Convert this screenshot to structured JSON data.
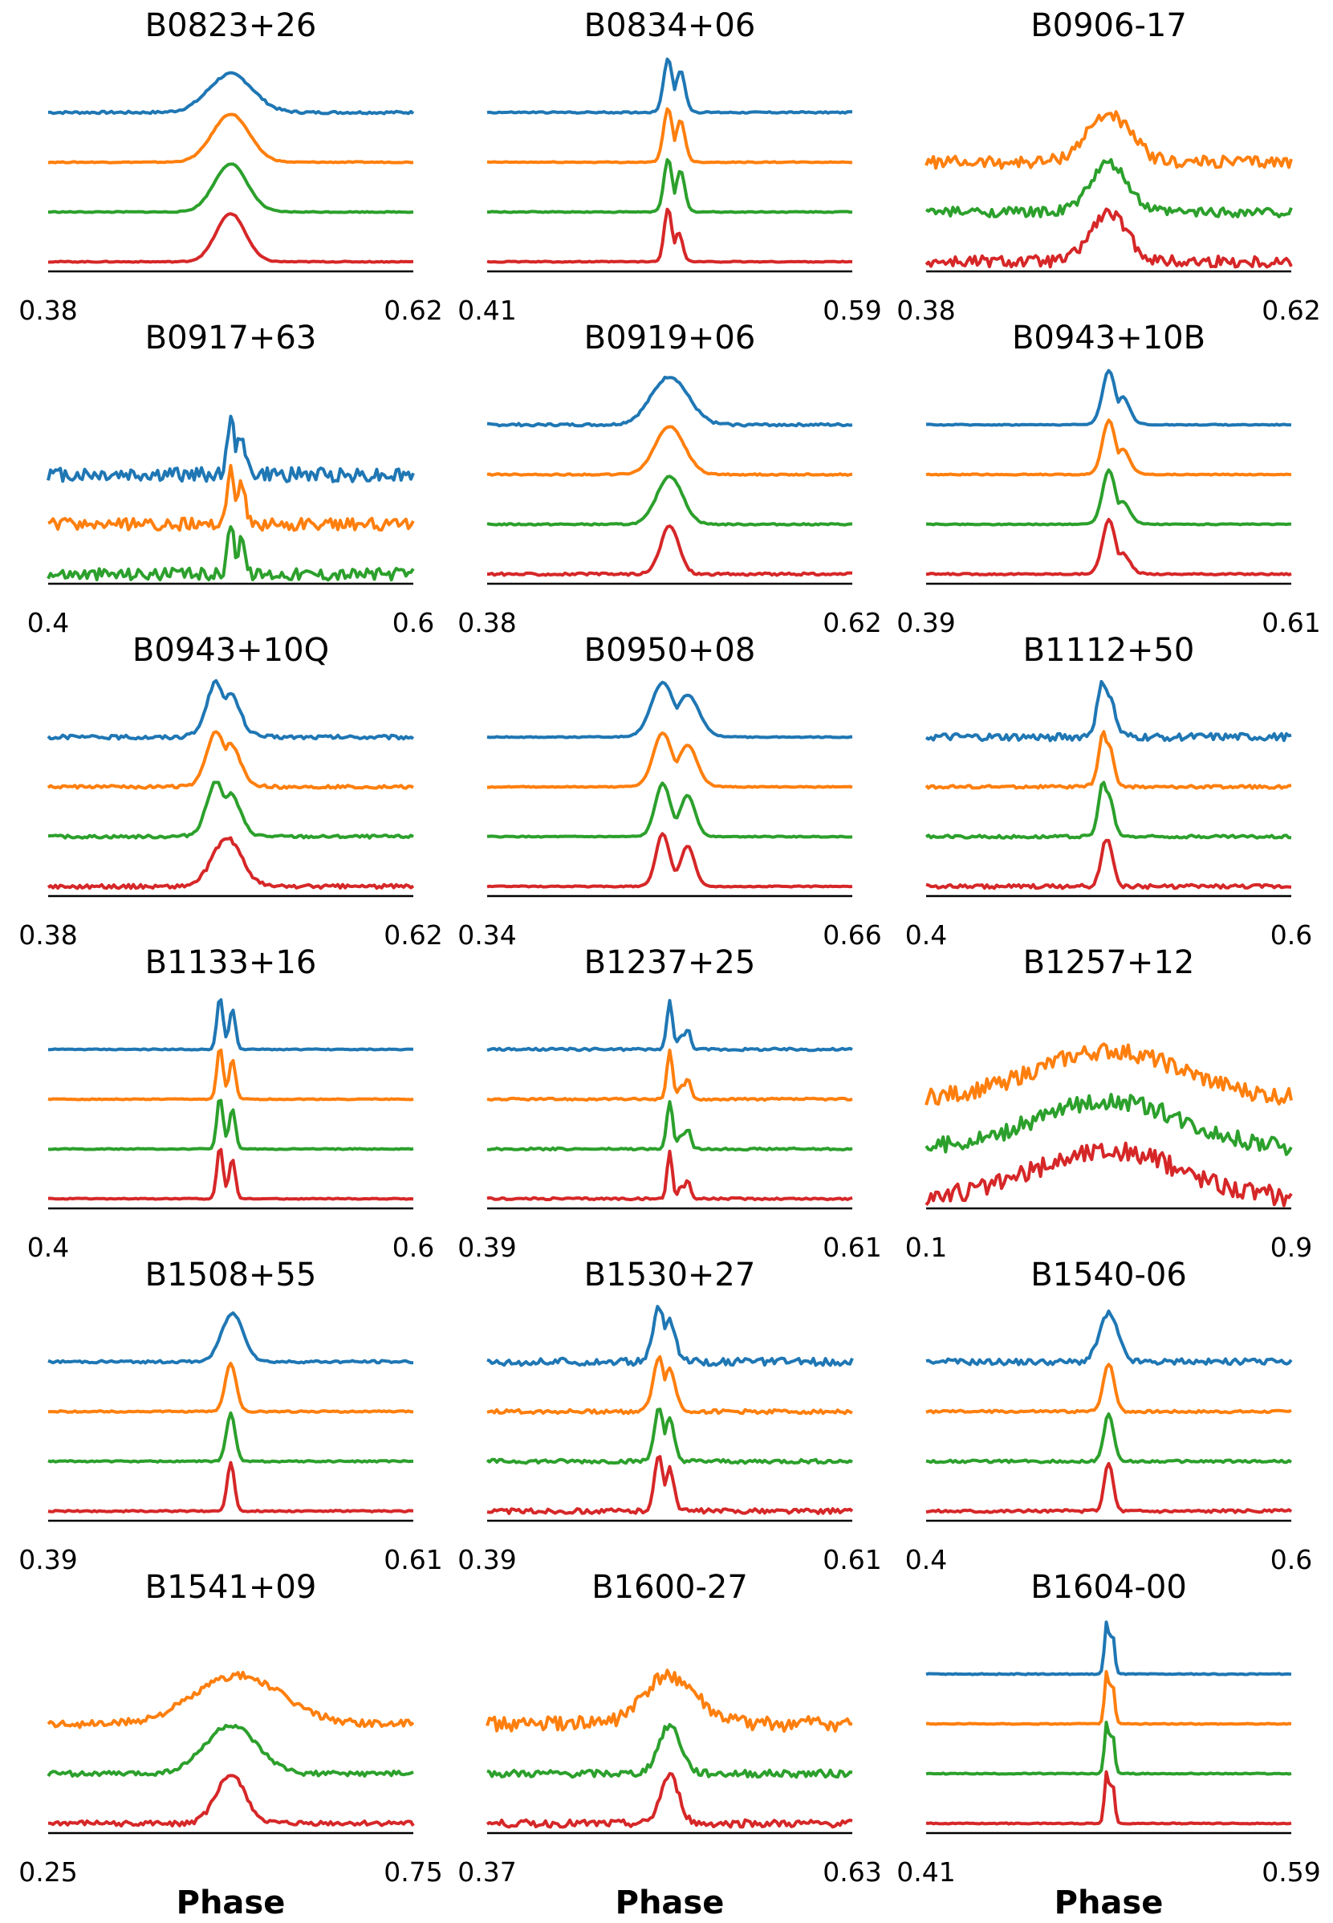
{
  "colors": {
    "blue": "#1f77b4",
    "orange": "#ff7f0e",
    "green": "#2ca02c",
    "red": "#d62728"
  },
  "xlabel": "Phase",
  "chart_data": [
    {
      "type": "line",
      "title": "B0823+26",
      "xlim": [
        "0.38",
        "0.62"
      ],
      "series": [
        {
          "color": "blue",
          "shape": "broad",
          "center": 0.5,
          "width": 0.06,
          "noise": 0.05,
          "peak_height": 0.8
        },
        {
          "color": "orange",
          "shape": "single",
          "center": 0.5,
          "width": 0.05,
          "noise": 0.02
        },
        {
          "color": "green",
          "shape": "single",
          "center": 0.5,
          "width": 0.045,
          "noise": 0.02
        },
        {
          "color": "red",
          "shape": "single",
          "center": 0.5,
          "width": 0.04,
          "noise": 0.02
        }
      ]
    },
    {
      "type": "line",
      "title": "B0834+06",
      "xlim": [
        "0.41",
        "0.59"
      ],
      "series": [
        {
          "color": "blue",
          "shape": "double",
          "centers": [
            0.495,
            0.53
          ],
          "width": 0.012,
          "noise": 0.03
        },
        {
          "color": "orange",
          "shape": "double",
          "centers": [
            0.495,
            0.53
          ],
          "width": 0.012,
          "noise": 0.02
        },
        {
          "color": "green",
          "shape": "double",
          "centers": [
            0.495,
            0.53
          ],
          "width": 0.011,
          "noise": 0.02
        },
        {
          "color": "red",
          "shape": "double",
          "centers": [
            0.495,
            0.525
          ],
          "width": 0.01,
          "noise": 0.02,
          "second_height": 0.5
        }
      ]
    },
    {
      "type": "line",
      "title": "B0906-17",
      "xlim": [
        "0.38",
        "0.62"
      ],
      "series": [
        {
          "color": "orange",
          "shape": "broad",
          "center": 0.5,
          "width": 0.06,
          "noise": 0.25
        },
        {
          "color": "green",
          "shape": "single",
          "center": 0.5,
          "width": 0.05,
          "noise": 0.2
        },
        {
          "color": "red",
          "shape": "single",
          "center": 0.5,
          "width": 0.05,
          "noise": 0.25
        }
      ]
    },
    {
      "type": "line",
      "title": "B0917+63",
      "xlim": [
        "0.4",
        "0.6"
      ],
      "series": [
        {
          "color": "blue",
          "shape": "double",
          "centers": [
            0.5,
            0.53
          ],
          "width": 0.01,
          "noise": 0.3
        },
        {
          "color": "orange",
          "shape": "double",
          "centers": [
            0.5,
            0.53
          ],
          "width": 0.01,
          "noise": 0.25
        },
        {
          "color": "green",
          "shape": "double",
          "centers": [
            0.5,
            0.53
          ],
          "width": 0.008,
          "noise": 0.25
        }
      ]
    },
    {
      "type": "line",
      "title": "B0919+06",
      "xlim": [
        "0.38",
        "0.62"
      ],
      "series": [
        {
          "color": "blue",
          "shape": "broad",
          "center": 0.5,
          "width": 0.05,
          "noise": 0.05
        },
        {
          "color": "orange",
          "shape": "single",
          "center": 0.5,
          "width": 0.04,
          "noise": 0.03
        },
        {
          "color": "green",
          "shape": "single",
          "center": 0.5,
          "width": 0.035,
          "noise": 0.03
        },
        {
          "color": "red",
          "shape": "single",
          "center": 0.5,
          "width": 0.025,
          "noise": 0.05
        }
      ]
    },
    {
      "type": "line",
      "title": "B0943+10B",
      "xlim": [
        "0.39",
        "0.61"
      ],
      "series": [
        {
          "color": "blue",
          "shape": "double",
          "centers": [
            0.5,
            0.54
          ],
          "width": 0.017,
          "noise": 0.02,
          "second_height": 0.45
        },
        {
          "color": "orange",
          "shape": "double",
          "centers": [
            0.5,
            0.54
          ],
          "width": 0.017,
          "noise": 0.02,
          "second_height": 0.4
        },
        {
          "color": "green",
          "shape": "double",
          "centers": [
            0.5,
            0.54
          ],
          "width": 0.017,
          "noise": 0.02,
          "second_height": 0.35
        },
        {
          "color": "red",
          "shape": "double",
          "centers": [
            0.5,
            0.54
          ],
          "width": 0.017,
          "noise": 0.03,
          "second_height": 0.3
        }
      ]
    },
    {
      "type": "line",
      "title": "B0943+10Q",
      "xlim": [
        "0.38",
        "0.62"
      ],
      "series": [
        {
          "color": "blue",
          "shape": "double",
          "centers": [
            0.46,
            0.5
          ],
          "width": 0.025,
          "noise": 0.08
        },
        {
          "color": "orange",
          "shape": "double",
          "centers": [
            0.46,
            0.5
          ],
          "width": 0.025,
          "noise": 0.06
        },
        {
          "color": "green",
          "shape": "double",
          "centers": [
            0.46,
            0.5
          ],
          "width": 0.025,
          "noise": 0.06
        },
        {
          "color": "red",
          "shape": "broad",
          "center": 0.49,
          "width": 0.04,
          "noise": 0.08
        }
      ]
    },
    {
      "type": "line",
      "title": "B0950+08",
      "xlim": [
        "0.34",
        "0.66"
      ],
      "series": [
        {
          "color": "blue",
          "shape": "double",
          "centers": [
            0.48,
            0.55
          ],
          "width": 0.03,
          "noise": 0.02
        },
        {
          "color": "orange",
          "shape": "double",
          "centers": [
            0.48,
            0.55
          ],
          "width": 0.025,
          "noise": 0.02
        },
        {
          "color": "green",
          "shape": "double",
          "centers": [
            0.48,
            0.55
          ],
          "width": 0.02,
          "noise": 0.02
        },
        {
          "color": "red",
          "shape": "double",
          "centers": [
            0.48,
            0.55
          ],
          "width": 0.018,
          "noise": 0.02
        }
      ]
    },
    {
      "type": "line",
      "title": "B1112+50",
      "xlim": [
        "0.4",
        "0.6"
      ],
      "series": [
        {
          "color": "blue",
          "shape": "double",
          "centers": [
            0.485,
            0.5
          ],
          "width": 0.015,
          "noise": 0.15
        },
        {
          "color": "orange",
          "shape": "double",
          "centers": [
            0.485,
            0.5
          ],
          "width": 0.012,
          "noise": 0.06
        },
        {
          "color": "green",
          "shape": "double",
          "centers": [
            0.485,
            0.5
          ],
          "width": 0.012,
          "noise": 0.06
        },
        {
          "color": "red",
          "shape": "single",
          "center": 0.495,
          "width": 0.015,
          "noise": 0.08
        }
      ]
    },
    {
      "type": "line",
      "title": "B1133+16",
      "xlim": [
        "0.4",
        "0.6"
      ],
      "series": [
        {
          "color": "blue",
          "shape": "double",
          "centers": [
            0.47,
            0.505
          ],
          "width": 0.008,
          "noise": 0.02
        },
        {
          "color": "orange",
          "shape": "double",
          "centers": [
            0.47,
            0.505
          ],
          "width": 0.008,
          "noise": 0.02
        },
        {
          "color": "green",
          "shape": "double",
          "centers": [
            0.47,
            0.505
          ],
          "width": 0.008,
          "noise": 0.02
        },
        {
          "color": "red",
          "shape": "double",
          "centers": [
            0.47,
            0.505
          ],
          "width": 0.008,
          "noise": 0.02
        }
      ]
    },
    {
      "type": "line",
      "title": "B1237+25",
      "xlim": [
        "0.39",
        "0.61"
      ],
      "series": [
        {
          "color": "blue",
          "shape": "triple",
          "centers": [
            0.5,
            0.53,
            0.55
          ],
          "width": 0.008,
          "noise": 0.05
        },
        {
          "color": "orange",
          "shape": "triple",
          "centers": [
            0.5,
            0.53,
            0.55
          ],
          "width": 0.008,
          "noise": 0.04
        },
        {
          "color": "green",
          "shape": "triple",
          "centers": [
            0.5,
            0.53,
            0.55
          ],
          "width": 0.008,
          "noise": 0.04
        },
        {
          "color": "red",
          "shape": "triple",
          "centers": [
            0.5,
            0.53,
            0.55
          ],
          "width": 0.007,
          "noise": 0.04
        }
      ]
    },
    {
      "type": "line",
      "title": "B1257+12",
      "xlim": [
        "0.1",
        "0.9"
      ],
      "series": [
        {
          "color": "orange",
          "shape": "broad",
          "center": 0.5,
          "width": 0.2,
          "noise": 0.35
        },
        {
          "color": "green",
          "shape": "broad",
          "center": 0.5,
          "width": 0.2,
          "noise": 0.35
        },
        {
          "color": "red",
          "shape": "broad",
          "center": 0.5,
          "width": 0.2,
          "noise": 0.4
        }
      ]
    },
    {
      "type": "line",
      "title": "B1508+55",
      "xlim": [
        "0.39",
        "0.61"
      ],
      "series": [
        {
          "color": "blue",
          "shape": "broad",
          "center": 0.505,
          "width": 0.03,
          "noise": 0.05
        },
        {
          "color": "orange",
          "shape": "single",
          "center": 0.5,
          "width": 0.015,
          "noise": 0.03
        },
        {
          "color": "green",
          "shape": "single",
          "center": 0.5,
          "width": 0.012,
          "noise": 0.03
        },
        {
          "color": "red",
          "shape": "single",
          "center": 0.5,
          "width": 0.01,
          "noise": 0.03
        }
      ]
    },
    {
      "type": "line",
      "title": "B1530+27",
      "xlim": [
        "0.39",
        "0.61"
      ],
      "series": [
        {
          "color": "blue",
          "shape": "double",
          "centers": [
            0.47,
            0.5
          ],
          "width": 0.015,
          "noise": 0.15
        },
        {
          "color": "orange",
          "shape": "double",
          "centers": [
            0.47,
            0.5
          ],
          "width": 0.015,
          "noise": 0.08
        },
        {
          "color": "green",
          "shape": "double",
          "centers": [
            0.47,
            0.5
          ],
          "width": 0.012,
          "noise": 0.08
        },
        {
          "color": "red",
          "shape": "double",
          "centers": [
            0.47,
            0.5
          ],
          "width": 0.012,
          "noise": 0.1
        }
      ]
    },
    {
      "type": "line",
      "title": "B1540-06",
      "xlim": [
        "0.4",
        "0.6"
      ],
      "series": [
        {
          "color": "blue",
          "shape": "broad",
          "center": 0.5,
          "width": 0.025,
          "noise": 0.12
        },
        {
          "color": "orange",
          "shape": "single",
          "center": 0.5,
          "width": 0.015,
          "noise": 0.05
        },
        {
          "color": "green",
          "shape": "single",
          "center": 0.5,
          "width": 0.013,
          "noise": 0.05
        },
        {
          "color": "red",
          "shape": "single",
          "center": 0.5,
          "width": 0.012,
          "noise": 0.06
        }
      ]
    },
    {
      "type": "line",
      "title": "B1541+09",
      "xlim": [
        "0.25",
        "0.75"
      ],
      "series": [
        {
          "color": "orange",
          "shape": "broad",
          "center": 0.52,
          "width": 0.12,
          "noise": 0.15
        },
        {
          "color": "green",
          "shape": "broad",
          "center": 0.5,
          "width": 0.07,
          "noise": 0.1
        },
        {
          "color": "red",
          "shape": "single",
          "center": 0.5,
          "width": 0.04,
          "noise": 0.1
        }
      ]
    },
    {
      "type": "line",
      "title": "B1600-27",
      "xlim": [
        "0.37",
        "0.63"
      ],
      "series": [
        {
          "color": "orange",
          "shape": "broad",
          "center": 0.5,
          "width": 0.07,
          "noise": 0.3
        },
        {
          "color": "green",
          "shape": "single",
          "center": 0.5,
          "width": 0.03,
          "noise": 0.15
        },
        {
          "color": "red",
          "shape": "single",
          "center": 0.5,
          "width": 0.025,
          "noise": 0.15
        }
      ]
    },
    {
      "type": "line",
      "title": "B1604-00",
      "xlim": [
        "0.41",
        "0.59"
      ],
      "series": [
        {
          "color": "blue",
          "shape": "double",
          "centers": [
            0.495,
            0.51
          ],
          "width": 0.006,
          "noise": 0.02
        },
        {
          "color": "orange",
          "shape": "double",
          "centers": [
            0.495,
            0.51
          ],
          "width": 0.006,
          "noise": 0.02
        },
        {
          "color": "green",
          "shape": "double",
          "centers": [
            0.495,
            0.51
          ],
          "width": 0.006,
          "noise": 0.02
        },
        {
          "color": "red",
          "shape": "double",
          "centers": [
            0.495,
            0.51
          ],
          "width": 0.006,
          "noise": 0.02
        }
      ]
    }
  ]
}
